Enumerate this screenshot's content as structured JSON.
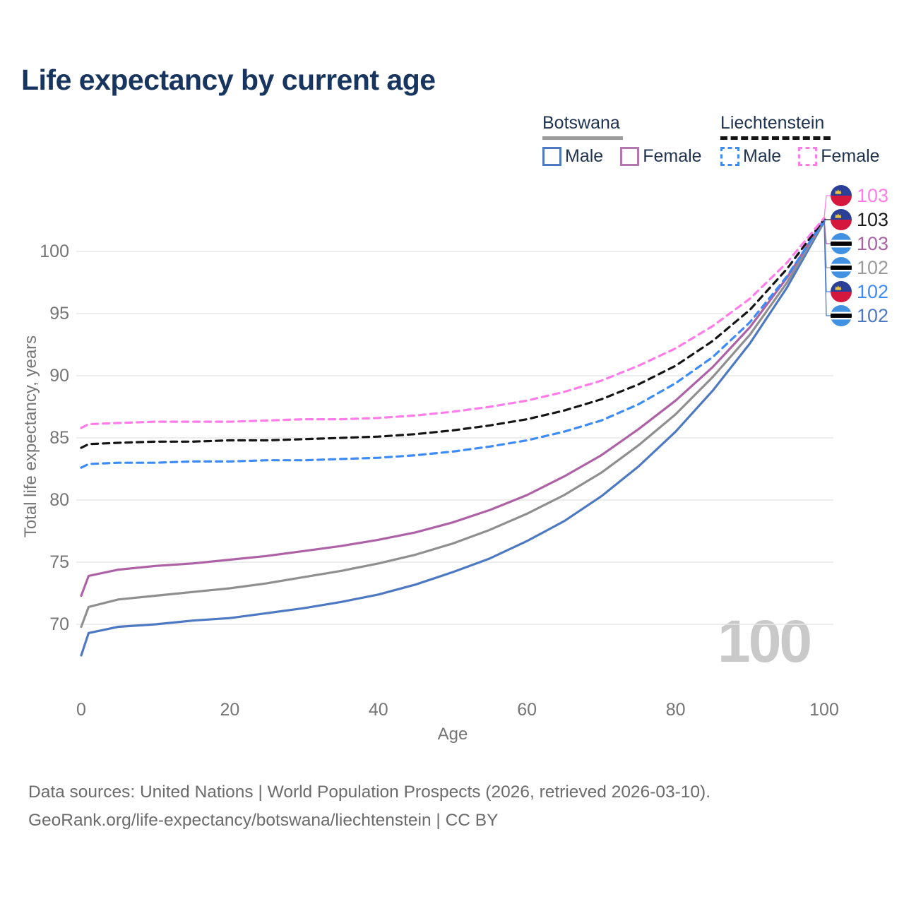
{
  "title": "Life expectancy by current age",
  "colors": {
    "title": "#17355e",
    "legend_text": "#1f3350",
    "axis_text": "#757575",
    "grid": "#e7e7e7",
    "watermark": "#c9c9c9",
    "footer_text": "#6b6b6b"
  },
  "legend": {
    "groups": [
      {
        "label": "Botswana",
        "line_style": "solid",
        "underline_color": "#9b9b9b",
        "items": [
          {
            "label": "Male",
            "color": "#4d79c3"
          },
          {
            "label": "Female",
            "color": "#b377af"
          }
        ]
      },
      {
        "label": "Liechtenstein",
        "line_style": "dashed",
        "underline_color": "#141414",
        "items": [
          {
            "label": "Male",
            "color": "#3c8bf7"
          },
          {
            "label": "Female",
            "color": "#ff7ce9"
          }
        ]
      }
    ]
  },
  "chart_data": {
    "type": "line",
    "title": "Life expectancy by current age",
    "xlabel": "Age",
    "ylabel": "Total life expectancy, years",
    "xlim": [
      0,
      100
    ],
    "ylim": [
      66.5,
      103.5
    ],
    "x_ticks": [
      0,
      20,
      40,
      60,
      80,
      100
    ],
    "y_ticks": [
      70,
      75,
      80,
      85,
      90,
      95,
      100
    ],
    "grid": "horizontal-only",
    "legend_position": "top-right",
    "x": [
      0,
      1,
      5,
      10,
      15,
      20,
      25,
      30,
      35,
      40,
      45,
      50,
      55,
      60,
      65,
      70,
      75,
      80,
      85,
      90,
      95,
      100
    ],
    "series": [
      {
        "name": "Botswana Male",
        "country": "Botswana",
        "sex": "male",
        "style": "solid",
        "color": "#4d79c3",
        "values": [
          67.5,
          69.3,
          69.8,
          70.0,
          70.3,
          70.5,
          70.9,
          71.3,
          71.8,
          72.4,
          73.2,
          74.2,
          75.3,
          76.7,
          78.3,
          80.3,
          82.7,
          85.5,
          88.8,
          92.6,
          97.1,
          102.4
        ]
      },
      {
        "name": "Botswana Both sexes",
        "country": "Botswana",
        "sex": "both",
        "style": "solid",
        "color": "#8f8f8f",
        "values": [
          69.8,
          71.4,
          72.0,
          72.3,
          72.6,
          72.9,
          73.3,
          73.8,
          74.3,
          74.9,
          75.6,
          76.5,
          77.6,
          78.9,
          80.4,
          82.2,
          84.4,
          86.9,
          89.9,
          93.3,
          97.5,
          102.5
        ]
      },
      {
        "name": "Botswana Female",
        "country": "Botswana",
        "sex": "female",
        "style": "solid",
        "color": "#ae62a6",
        "values": [
          72.3,
          73.9,
          74.4,
          74.7,
          74.9,
          75.2,
          75.5,
          75.9,
          76.3,
          76.8,
          77.4,
          78.2,
          79.2,
          80.4,
          81.9,
          83.6,
          85.7,
          88.0,
          90.7,
          93.9,
          97.9,
          102.6
        ]
      },
      {
        "name": "Liechtenstein Male",
        "country": "Liechtenstein",
        "sex": "male",
        "style": "dashed",
        "color": "#3c8bf7",
        "values": [
          82.6,
          82.9,
          83.0,
          83.0,
          83.1,
          83.1,
          83.2,
          83.2,
          83.3,
          83.4,
          83.6,
          83.9,
          84.3,
          84.8,
          85.5,
          86.4,
          87.7,
          89.4,
          91.5,
          94.3,
          98.0,
          102.5
        ]
      },
      {
        "name": "Liechtenstein Both sexes",
        "country": "Liechtenstein",
        "sex": "both",
        "style": "dashed",
        "color": "#141414",
        "values": [
          84.2,
          84.5,
          84.6,
          84.7,
          84.7,
          84.8,
          84.8,
          84.9,
          85.0,
          85.1,
          85.3,
          85.6,
          86.0,
          86.5,
          87.2,
          88.1,
          89.3,
          90.8,
          92.8,
          95.3,
          98.6,
          102.6
        ]
      },
      {
        "name": "Liechtenstein Female",
        "country": "Liechtenstein",
        "sex": "female",
        "style": "dashed",
        "color": "#ff7ce9",
        "values": [
          85.8,
          86.1,
          86.2,
          86.3,
          86.3,
          86.3,
          86.4,
          86.5,
          86.5,
          86.6,
          86.8,
          87.1,
          87.5,
          88.0,
          88.7,
          89.6,
          90.8,
          92.2,
          94.0,
          96.2,
          99.1,
          102.7
        ]
      }
    ]
  },
  "end_labels": [
    {
      "value": "103",
      "flag": "liechtenstein",
      "color": "#ff7ce9",
      "series": "Liechtenstein Female"
    },
    {
      "value": "103",
      "flag": "liechtenstein",
      "color": "#1a1a1a",
      "series": "Liechtenstein Both sexes"
    },
    {
      "value": "103",
      "flag": "botswana",
      "color": "#a863a2",
      "series": "Botswana Female"
    },
    {
      "value": "102",
      "flag": "botswana",
      "color": "#9a9a9a",
      "series": "Botswana Both sexes"
    },
    {
      "value": "102",
      "flag": "liechtenstein",
      "color": "#3c8bf7",
      "series": "Liechtenstein Male"
    },
    {
      "value": "102",
      "flag": "botswana",
      "color": "#4d79c3",
      "series": "Botswana Male"
    }
  ],
  "flag_colors": {
    "liechtenstein": [
      "#2b3f97",
      "#d5173e",
      "#ecc63a"
    ],
    "botswana": [
      "#4191e2",
      "#000000",
      "#ffffff"
    ]
  },
  "watermark": "100",
  "footer": {
    "line1": "Data sources: United Nations | World Population Prospects (2026, retrieved 2026-03-10).",
    "line2": "GeoRank.org/life-expectancy/botswana/liechtenstein | CC BY"
  }
}
